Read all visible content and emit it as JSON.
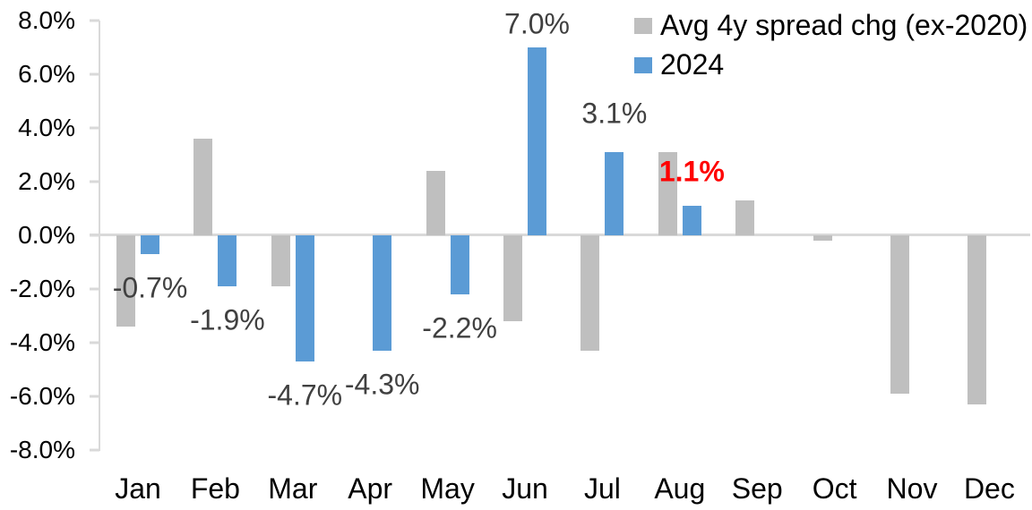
{
  "chart_data": {
    "type": "bar",
    "title": "",
    "categories": [
      "Jan",
      "Feb",
      "Mar",
      "Apr",
      "May",
      "Jun",
      "Jul",
      "Aug",
      "Sep",
      "Oct",
      "Nov",
      "Dec"
    ],
    "series": [
      {
        "name": "Avg 4y spread chg (ex-2020)",
        "color": "#BFBFBF",
        "values": [
          -3.4,
          3.6,
          -1.9,
          0.0,
          2.4,
          -3.2,
          -4.3,
          3.1,
          1.3,
          -0.2,
          -5.9,
          -6.3
        ]
      },
      {
        "name": "2024",
        "color": "#5B9BD5",
        "values": [
          -0.7,
          -1.9,
          -4.7,
          -4.3,
          -2.2,
          7.0,
          3.1,
          1.1,
          null,
          null,
          null,
          null
        ]
      }
    ],
    "data_labels": [
      {
        "category": "Jan",
        "text": "-0.7%",
        "color": "#404040",
        "bold": false,
        "dy": 0
      },
      {
        "category": "Feb",
        "text": "-1.9%",
        "color": "#404040",
        "bold": false,
        "dy": 0
      },
      {
        "category": "Mar",
        "text": "-4.7%",
        "color": "#404040",
        "bold": false,
        "dy": 0
      },
      {
        "category": "Apr",
        "text": "-4.3%",
        "color": "#404040",
        "bold": false,
        "dy": 0
      },
      {
        "category": "May",
        "text": "-2.2%",
        "color": "#404040",
        "bold": false,
        "dy": 0
      },
      {
        "category": "Jun",
        "text": "7.0%",
        "color": "#404040",
        "bold": false,
        "dy": 12
      },
      {
        "category": "Jul",
        "text": "3.1%",
        "color": "#404040",
        "bold": false,
        "dy": -5
      },
      {
        "category": "Aug",
        "text": "1.1%",
        "color": "#FF0000",
        "bold": true,
        "dy": 0
      }
    ],
    "y_axis": {
      "min": -8,
      "max": 8,
      "step": 2,
      "tick_labels": [
        "8.0%",
        "6.0%",
        "4.0%",
        "2.0%",
        "0.0%",
        "-2.0%",
        "-4.0%",
        "-6.0%",
        "-8.0%"
      ]
    },
    "legend": {
      "position": "top-right",
      "entries": [
        "Avg 4y spread chg (ex-2020)",
        "2024"
      ]
    },
    "grid": false,
    "axis_line_color": "#D9D9D9",
    "background": "#FFFFFF"
  }
}
